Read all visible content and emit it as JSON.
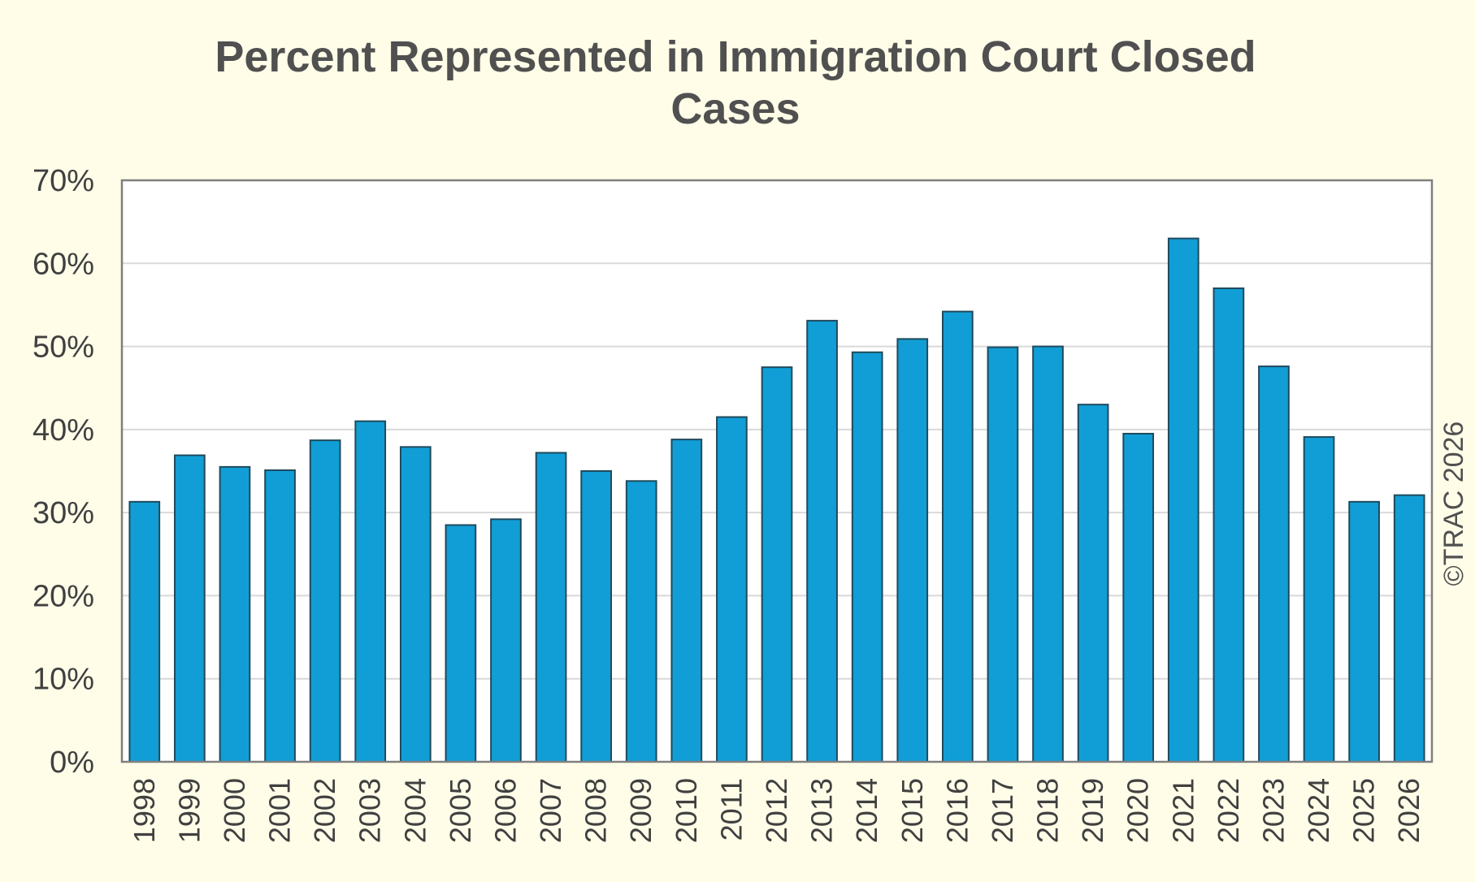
{
  "chart_data": {
    "type": "bar",
    "title": "Percent Represented in Immigration Court Closed Cases",
    "xlabel": "",
    "ylabel": "",
    "categories": [
      "1998",
      "1999",
      "2000",
      "2001",
      "2002",
      "2003",
      "2004",
      "2005",
      "2006",
      "2007",
      "2008",
      "2009",
      "2010",
      "2011",
      "2012",
      "2013",
      "2014",
      "2015",
      "2016",
      "2017",
      "2018",
      "2019",
      "2020",
      "2021",
      "2022",
      "2023",
      "2024",
      "2025",
      "2026"
    ],
    "values": [
      31.3,
      36.9,
      35.5,
      35.1,
      38.7,
      41.0,
      37.9,
      28.5,
      29.2,
      37.2,
      35.0,
      33.8,
      38.8,
      41.5,
      47.5,
      53.1,
      49.3,
      50.9,
      54.2,
      49.9,
      50.0,
      43.0,
      39.5,
      63.0,
      57.0,
      47.6,
      39.1,
      31.3,
      32.1
    ],
    "ylim": [
      0,
      70
    ],
    "yticks": [
      0,
      10,
      20,
      30,
      40,
      50,
      60,
      70
    ],
    "ytick_suffix": "%",
    "grid": true,
    "bar_color": "#119ed6",
    "bar_edge_color": "#1f4a5c",
    "background_color": "#fffde8",
    "plot_background_color": "#ffffff",
    "watermark": "©TRAC 2026"
  }
}
